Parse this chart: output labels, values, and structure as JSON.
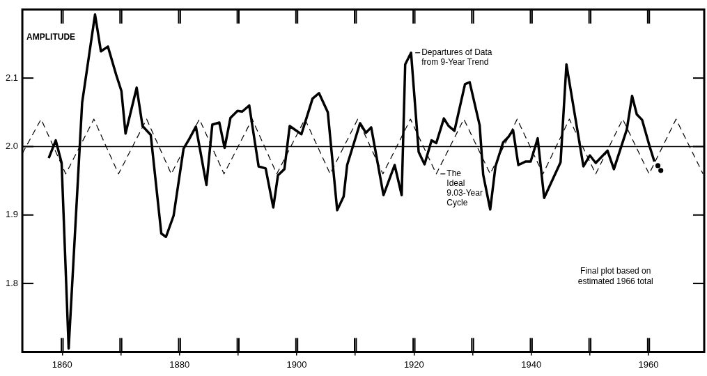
{
  "chart_data": {
    "type": "line",
    "ylabel": "AMPLITUDE",
    "xlim": [
      1853.2,
      1969.5
    ],
    "xticks": [
      1860,
      {
        "value": 1870,
        "label": null
      },
      1880,
      {
        "value": 1890,
        "label": null
      },
      1900,
      {
        "value": 1910,
        "label": null
      },
      1920,
      {
        "value": 1930,
        "label": null
      },
      1940,
      {
        "value": 1950,
        "label": null
      },
      1960
    ],
    "ylim": [
      1.7,
      2.2
    ],
    "yticks": [
      1.8,
      1.9,
      {
        "value": 2,
        "label": "2.0"
      },
      2.1
    ],
    "grid": false,
    "legend": false,
    "marker": "none",
    "ref_lines": [
      {
        "axis": "y",
        "value": 2,
        "color": "#000000"
      }
    ],
    "series": [
      {
        "color": "#000000",
        "line_style": "solid",
        "x": [
          1857.7,
          1858.9,
          1859.9,
          1861.1,
          1863.4,
          1865.6,
          1866.6,
          1867.8,
          1869.2,
          1870.1,
          1870.8,
          1872.7,
          1873.7,
          1875.1,
          1876.9,
          1877.7,
          1879.0,
          1880.7,
          1881.6,
          1882.8,
          1884.6,
          1885.6,
          1886.8,
          1887.7,
          1888.7,
          1889.9,
          1890.7,
          1891.9,
          1893.5,
          1894.7,
          1896.0,
          1896.8,
          1897.9,
          1898.8,
          1900.8,
          1902.7,
          1903.8,
          1905.3,
          1906.9,
          1908.0,
          1908.6,
          1910.8,
          1911.8,
          1912.7,
          1914.8,
          1916.7,
          1917.9,
          1918.5,
          1919.5,
          1920.8,
          1921.8,
          1923.0,
          1923.8,
          1925.1,
          1925.9,
          1926.9,
          1928.7,
          1929.5,
          1931.2,
          1931.8,
          1933.0,
          1933.9,
          1935.2,
          1936.1,
          1936.9,
          1937.8,
          1939.0,
          1939.9,
          1941.1,
          1942.2,
          1945.0,
          1946.0,
          1948.9,
          1950.0,
          1951.0,
          1953.0,
          1954.1,
          1956.3,
          1957.2,
          1958.0,
          1958.9,
          1960.2,
          1961.0
        ],
        "values": [
          1.983,
          2.009,
          1.976,
          1.705,
          2.064,
          2.193,
          2.139,
          2.146,
          2.105,
          2.081,
          2.019,
          2.086,
          2.03,
          2.017,
          1.873,
          1.868,
          1.899,
          1.997,
          2.01,
          2.029,
          1.944,
          2.032,
          2.035,
          1.998,
          2.042,
          2.052,
          2.051,
          2.06,
          1.971,
          1.968,
          1.911,
          1.958,
          1.967,
          2.03,
          2.018,
          2.07,
          2.078,
          2.05,
          1.907,
          1.927,
          1.973,
          2.034,
          2.02,
          2.028,
          1.929,
          1.973,
          1.929,
          2.12,
          2.137,
          1.992,
          1.974,
          2.009,
          2.005,
          2.041,
          2.03,
          2.023,
          2.091,
          2.094,
          2.031,
          1.959,
          1.908,
          1.971,
          2.006,
          2.014,
          2.024,
          1.973,
          1.978,
          1.978,
          2.012,
          1.925,
          1.977,
          2.12,
          1.971,
          1.987,
          1.976,
          1.994,
          1.967,
          2.025,
          2.074,
          2.047,
          2.039,
          2.0,
          1.978
        ]
      },
      {
        "color": "#000000",
        "line_style": "dashed",
        "x": [
          1853.2,
          1856.4,
          1860.6,
          1865.4,
          1869.6,
          1874.4,
          1878.6,
          1883.4,
          1887.6,
          1892.4,
          1896.6,
          1901.4,
          1905.7,
          1910.4,
          1914.7,
          1919.4,
          1923.8,
          1928.5,
          1933.0,
          1937.6,
          1942.0,
          1946.5,
          1951.0,
          1955.6,
          1960.1,
          1964.7,
          1969.3
        ],
        "values": [
          1.99,
          2.04,
          1.96,
          2.04,
          1.96,
          2.04,
          1.96,
          2.04,
          1.96,
          2.04,
          1.96,
          2.04,
          1.96,
          2.04,
          1.96,
          2.04,
          1.96,
          2.04,
          1.96,
          2.04,
          1.96,
          2.04,
          1.96,
          2.04,
          1.96,
          2.04,
          1.96
        ]
      },
      {
        "type": "scatter",
        "marker": "circle",
        "color": "#000000",
        "x": [
          1961.6,
          1962.1
        ],
        "values": [
          1.972,
          1.965
        ]
      }
    ],
    "annotations": [
      {
        "text": "Departures of Data\nfrom 9-Year Trend",
        "x": 1919.5,
        "y": 2.137
      },
      {
        "text": "The\nIdeal\n9.03-Year\nCycle",
        "x": 1923.8,
        "y": 1.96
      },
      "Final plot based on\nestimated 1966 total"
    ]
  }
}
